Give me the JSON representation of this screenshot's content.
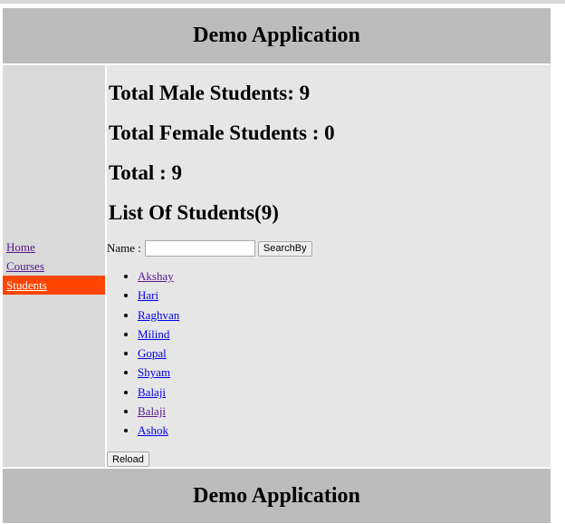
{
  "header": {
    "title": "Demo Application"
  },
  "footer": {
    "title": "Demo Application"
  },
  "sidebar": {
    "items": [
      {
        "label": "Home"
      },
      {
        "label": "Courses"
      },
      {
        "label": "Students"
      }
    ]
  },
  "main": {
    "male": "Total Male Students: 9",
    "female": "Total Female Students : 0",
    "total": "Total : 9",
    "list_title": "List Of Students(9)",
    "search_label": "Name :",
    "search_value": "",
    "search_button": "SearchBy",
    "students": [
      "Akshay",
      "Hari",
      "Raghvan",
      "Milind",
      "Gopal",
      "Shyam",
      "Balaji",
      "Balaji",
      "Ashok"
    ],
    "reload": "Reload"
  },
  "colors": {
    "active_nav": "#ff4500",
    "header_bg": "#bcbcbc",
    "sidebar_bg": "#d9d9d9",
    "main_bg": "#e6e6e6"
  }
}
